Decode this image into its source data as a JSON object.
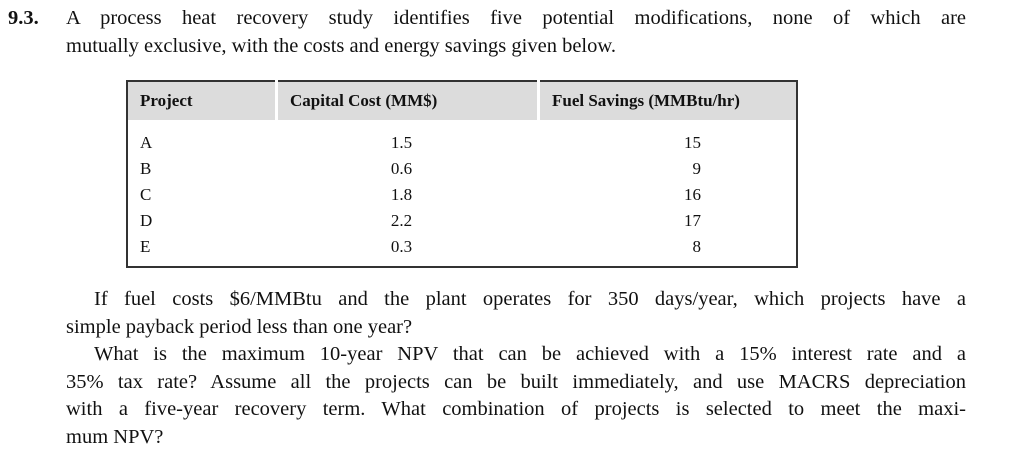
{
  "problem": {
    "number": "9.3.",
    "intro": [
      "A process heat recovery study identifies five potential modifications, none of which are",
      "mutually exclusive, with the costs and energy savings given below."
    ],
    "table": {
      "headers": [
        "Project",
        "Capital Cost (MM$)",
        "Fuel Savings (MMBtu/hr)"
      ],
      "rows": [
        [
          "A",
          "1.5",
          "15"
        ],
        [
          "B",
          "0.6",
          "9"
        ],
        [
          "C",
          "1.8",
          "16"
        ],
        [
          "D",
          "2.2",
          "17"
        ],
        [
          "E",
          "0.3",
          "8"
        ]
      ]
    },
    "lines": [
      "If fuel costs $6/MMBtu and the plant operates for 350 days/year, which projects have a",
      "simple payback period less than one year?",
      "What is the maximum 10-year NPV that can be achieved with a 15% interest rate and a",
      "35% tax rate? Assume all the projects can be built immediately, and use MACRS depreciation",
      "with a five-year recovery term. What combination of projects is selected to meet the maxi-",
      "mum NPV?"
    ]
  }
}
